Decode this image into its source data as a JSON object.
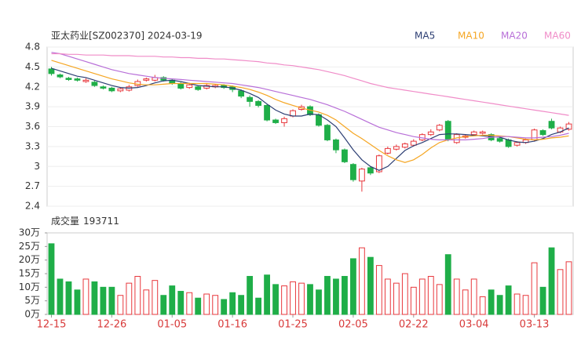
{
  "chart_data": {
    "type": "candlestick",
    "title": "亚太药业[SZ002370] 2024-03-19",
    "categories": [
      "12-15",
      null,
      null,
      null,
      null,
      null,
      null,
      "12-26",
      null,
      null,
      null,
      null,
      null,
      null,
      "01-05",
      null,
      null,
      null,
      null,
      null,
      null,
      "01-16",
      null,
      null,
      null,
      null,
      null,
      null,
      "01-25",
      null,
      null,
      null,
      null,
      null,
      null,
      "02-05",
      null,
      null,
      null,
      null,
      null,
      null,
      "02-22",
      null,
      null,
      null,
      null,
      null,
      null,
      "03-04",
      null,
      null,
      null,
      null,
      null,
      null,
      "03-13",
      null,
      null,
      null,
      null
    ],
    "open": [
      4.47,
      4.38,
      4.33,
      4.32,
      4.28,
      4.27,
      4.2,
      4.18,
      4.14,
      4.15,
      4.22,
      4.3,
      4.3,
      4.34,
      4.3,
      4.25,
      4.19,
      4.2,
      4.18,
      4.2,
      4.22,
      4.2,
      4.14,
      4.04,
      3.98,
      3.92,
      3.7,
      3.66,
      3.76,
      3.86,
      3.9,
      3.78,
      3.62,
      3.4,
      3.25,
      3.03,
      2.78,
      2.98,
      2.92,
      3.2,
      3.26,
      3.29,
      3.32,
      3.4,
      3.48,
      3.55,
      3.68,
      3.36,
      3.44,
      3.48,
      3.5,
      3.48,
      3.42,
      3.4,
      3.32,
      3.36,
      3.4,
      3.54,
      3.68,
      3.52,
      3.56
    ],
    "high": [
      4.5,
      4.4,
      4.35,
      4.34,
      4.33,
      4.29,
      4.22,
      4.2,
      4.19,
      4.23,
      4.31,
      4.34,
      4.38,
      4.36,
      4.32,
      4.27,
      4.26,
      4.22,
      4.25,
      4.24,
      4.24,
      4.22,
      4.16,
      4.07,
      4.0,
      3.94,
      3.72,
      3.75,
      3.86,
      3.93,
      3.92,
      3.8,
      3.64,
      3.42,
      3.27,
      3.05,
      2.98,
      3.0,
      3.18,
      3.3,
      3.33,
      3.36,
      3.41,
      3.5,
      3.56,
      3.64,
      3.7,
      3.5,
      3.48,
      3.54,
      3.54,
      3.5,
      3.44,
      3.42,
      3.38,
      3.42,
      3.57,
      3.56,
      3.72,
      3.6,
      3.67
    ],
    "low": [
      4.37,
      4.33,
      4.29,
      4.28,
      4.26,
      4.2,
      4.16,
      4.12,
      4.12,
      4.13,
      4.2,
      4.28,
      4.28,
      4.28,
      4.23,
      4.16,
      4.17,
      4.14,
      4.16,
      4.18,
      4.17,
      4.12,
      4.03,
      3.9,
      3.89,
      3.68,
      3.64,
      3.6,
      3.74,
      3.84,
      3.76,
      3.6,
      3.38,
      3.2,
      3.05,
      2.77,
      2.62,
      2.87,
      2.9,
      3.18,
      3.24,
      3.27,
      3.3,
      3.38,
      3.46,
      3.53,
      3.38,
      3.34,
      3.42,
      3.46,
      3.48,
      3.38,
      3.36,
      3.28,
      3.3,
      3.34,
      3.38,
      3.46,
      3.56,
      3.5,
      3.54
    ],
    "close": [
      4.4,
      4.35,
      4.31,
      4.3,
      4.3,
      4.22,
      4.18,
      4.14,
      4.17,
      4.2,
      4.28,
      4.32,
      4.34,
      4.3,
      4.25,
      4.18,
      4.23,
      4.16,
      4.22,
      4.22,
      4.19,
      4.16,
      4.06,
      3.98,
      3.92,
      3.7,
      3.66,
      3.72,
      3.84,
      3.9,
      3.78,
      3.62,
      3.4,
      3.25,
      3.07,
      2.8,
      2.96,
      2.9,
      3.16,
      3.27,
      3.3,
      3.34,
      3.38,
      3.48,
      3.52,
      3.62,
      3.4,
      3.48,
      3.46,
      3.52,
      3.52,
      3.4,
      3.38,
      3.3,
      3.36,
      3.4,
      3.55,
      3.48,
      3.58,
      3.58,
      3.64
    ],
    "up_color": "#e8383d",
    "down_color": "#1fae48",
    "series": [
      {
        "name": "MA5",
        "color": "#2c3e73",
        "values": [
          4.48,
          4.44,
          4.4,
          4.36,
          4.34,
          4.3,
          4.26,
          4.22,
          4.19,
          4.18,
          4.19,
          4.22,
          4.26,
          4.29,
          4.3,
          4.28,
          4.25,
          4.22,
          4.21,
          4.2,
          4.2,
          4.18,
          4.15,
          4.1,
          4.04,
          3.94,
          3.85,
          3.79,
          3.76,
          3.76,
          3.79,
          3.78,
          3.7,
          3.6,
          3.43,
          3.25,
          3.1,
          3.0,
          2.94,
          3.0,
          3.12,
          3.24,
          3.31,
          3.36,
          3.42,
          3.48,
          3.49,
          3.49,
          3.48,
          3.47,
          3.46,
          3.45,
          3.44,
          3.4,
          3.37,
          3.36,
          3.38,
          3.42,
          3.48,
          3.52,
          3.58
        ]
      },
      {
        "name": "MA10",
        "color": "#f5a623",
        "values": [
          4.6,
          4.56,
          4.52,
          4.48,
          4.44,
          4.4,
          4.36,
          4.32,
          4.29,
          4.26,
          4.24,
          4.23,
          4.23,
          4.24,
          4.25,
          4.25,
          4.25,
          4.25,
          4.25,
          4.24,
          4.23,
          4.21,
          4.19,
          4.16,
          4.12,
          4.07,
          4.01,
          3.96,
          3.92,
          3.88,
          3.85,
          3.82,
          3.77,
          3.7,
          3.6,
          3.5,
          3.42,
          3.33,
          3.24,
          3.16,
          3.1,
          3.06,
          3.1,
          3.18,
          3.28,
          3.36,
          3.4,
          3.43,
          3.45,
          3.46,
          3.47,
          3.47,
          3.46,
          3.45,
          3.43,
          3.41,
          3.4,
          3.41,
          3.43,
          3.44,
          3.46
        ]
      },
      {
        "name": "MA20",
        "color": "#b86fd8",
        "values": [
          4.72,
          4.7,
          4.66,
          4.62,
          4.58,
          4.54,
          4.5,
          4.46,
          4.43,
          4.4,
          4.38,
          4.36,
          4.34,
          4.33,
          4.32,
          4.31,
          4.3,
          4.29,
          4.28,
          4.27,
          4.26,
          4.25,
          4.23,
          4.21,
          4.19,
          4.16,
          4.13,
          4.1,
          4.07,
          4.04,
          4.01,
          3.97,
          3.93,
          3.88,
          3.83,
          3.77,
          3.71,
          3.65,
          3.59,
          3.55,
          3.51,
          3.48,
          3.45,
          3.43,
          3.41,
          3.4,
          3.4,
          3.4,
          3.4,
          3.41,
          3.42,
          3.44,
          3.45,
          3.45,
          3.44,
          3.43,
          3.43,
          3.44,
          3.45,
          3.47,
          3.5
        ]
      },
      {
        "name": "MA60",
        "color": "#f08cc8",
        "values": [
          4.7,
          4.7,
          4.69,
          4.69,
          4.68,
          4.68,
          4.68,
          4.67,
          4.67,
          4.67,
          4.66,
          4.66,
          4.66,
          4.65,
          4.65,
          4.64,
          4.64,
          4.63,
          4.63,
          4.62,
          4.62,
          4.61,
          4.6,
          4.59,
          4.58,
          4.56,
          4.55,
          4.53,
          4.52,
          4.5,
          4.48,
          4.46,
          4.43,
          4.4,
          4.37,
          4.33,
          4.29,
          4.25,
          4.22,
          4.19,
          4.17,
          4.15,
          4.13,
          4.11,
          4.09,
          4.07,
          4.05,
          4.03,
          4.01,
          3.99,
          3.97,
          3.95,
          3.93,
          3.91,
          3.89,
          3.87,
          3.85,
          3.83,
          3.81,
          3.79,
          3.77
        ]
      }
    ],
    "ylim": [
      2.4,
      4.8
    ],
    "yticks": [
      2.4,
      2.7,
      3,
      3.3,
      3.6,
      3.9,
      4.2,
      4.5,
      4.8
    ],
    "volume_label": "成交量",
    "volume": [
      260000,
      130000,
      120000,
      90000,
      130000,
      120000,
      100000,
      100000,
      70000,
      115000,
      140000,
      90000,
      125000,
      70000,
      105000,
      85000,
      80000,
      60000,
      75000,
      70000,
      55000,
      80000,
      70000,
      140000,
      60000,
      145000,
      110000,
      105000,
      120000,
      115000,
      110000,
      90000,
      140000,
      130000,
      140000,
      205000,
      245000,
      210000,
      180000,
      130000,
      115000,
      150000,
      100000,
      130000,
      140000,
      110000,
      220000,
      130000,
      90000,
      130000,
      65000,
      90000,
      70000,
      105000,
      75000,
      70000,
      190000,
      100000,
      245000,
      165000,
      193711
    ],
    "vlim": [
      0,
      300000
    ],
    "vticks": [
      {
        "value": 0,
        "label": "0万"
      },
      {
        "value": 50000,
        "label": "5万"
      },
      {
        "value": 100000,
        "label": "10万"
      },
      {
        "value": 150000,
        "label": "15万"
      },
      {
        "value": 200000,
        "label": "20万"
      },
      {
        "value": 250000,
        "label": "25万"
      },
      {
        "value": 300000,
        "label": "30万"
      }
    ]
  }
}
